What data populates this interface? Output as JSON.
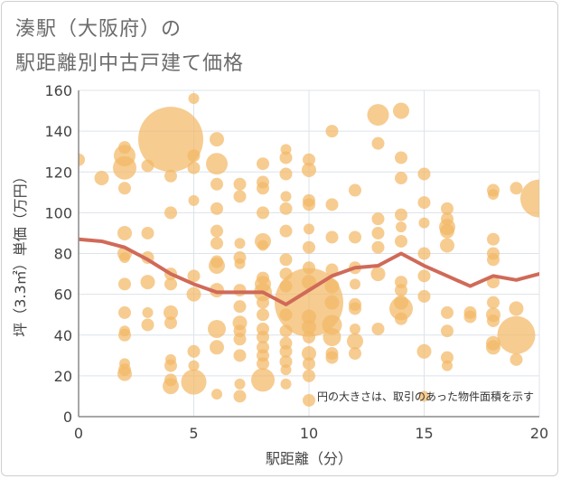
{
  "title": {
    "line1": "湊駅（大阪府）の",
    "line2": "駅距離別中古戸建て価格"
  },
  "chart_data": {
    "type": "scatter",
    "title": "湊駅（大阪府）の駅距離別中古戸建て価格",
    "xlabel": "駅距離（分）",
    "ylabel": "坪（3.3㎡）単価（万円）",
    "xlim": [
      0,
      20
    ],
    "ylim": [
      0,
      160
    ],
    "xticks": [
      0,
      5,
      10,
      15,
      20
    ],
    "yticks": [
      0,
      20,
      40,
      60,
      80,
      100,
      120,
      140,
      160
    ],
    "xtick_labels": [
      "0",
      "5",
      "10",
      "15",
      "20"
    ],
    "ytick_labels": [
      "0",
      "20",
      "40",
      "60",
      "80",
      "100",
      "120",
      "140",
      "160"
    ],
    "note": "円の大きさは、取引のあった物件面積を示す",
    "colors": {
      "bubble": "#f2b866",
      "trend": "#d06a58",
      "grid": "#dde3ea",
      "axis": "#8a8a8a"
    },
    "trend_line": {
      "x": [
        0,
        1,
        2,
        3,
        4,
        5,
        6,
        7,
        8,
        9,
        10,
        11,
        12,
        13,
        14,
        15,
        16,
        17,
        18,
        19,
        20
      ],
      "y": [
        87,
        86,
        83,
        77,
        70,
        65,
        61,
        61,
        61,
        55,
        62,
        69,
        73,
        74,
        80,
        74,
        69,
        64,
        69,
        67,
        70
      ]
    },
    "points": [
      {
        "x": 0,
        "y": 126,
        "s": 7
      },
      {
        "x": 1,
        "y": 117,
        "s": 8
      },
      {
        "x": 2,
        "y": 132,
        "s": 7
      },
      {
        "x": 2,
        "y": 128,
        "s": 12
      },
      {
        "x": 2,
        "y": 122,
        "s": 13
      },
      {
        "x": 2,
        "y": 112,
        "s": 7
      },
      {
        "x": 2,
        "y": 90,
        "s": 8
      },
      {
        "x": 2,
        "y": 80,
        "s": 8
      },
      {
        "x": 2,
        "y": 78,
        "s": 6
      },
      {
        "x": 2,
        "y": 65,
        "s": 7
      },
      {
        "x": 2,
        "y": 51,
        "s": 7
      },
      {
        "x": 2,
        "y": 42,
        "s": 6
      },
      {
        "x": 2,
        "y": 40,
        "s": 7
      },
      {
        "x": 2,
        "y": 26,
        "s": 6
      },
      {
        "x": 2,
        "y": 23,
        "s": 7
      },
      {
        "x": 2,
        "y": 21,
        "s": 8
      },
      {
        "x": 3,
        "y": 123,
        "s": 7
      },
      {
        "x": 3,
        "y": 90,
        "s": 7
      },
      {
        "x": 3,
        "y": 78,
        "s": 7
      },
      {
        "x": 3,
        "y": 66,
        "s": 8
      },
      {
        "x": 3,
        "y": 51,
        "s": 6
      },
      {
        "x": 3,
        "y": 45,
        "s": 7
      },
      {
        "x": 4,
        "y": 136,
        "s": 36
      },
      {
        "x": 4,
        "y": 118,
        "s": 7
      },
      {
        "x": 4,
        "y": 100,
        "s": 7
      },
      {
        "x": 4,
        "y": 70,
        "s": 7
      },
      {
        "x": 4,
        "y": 65,
        "s": 7
      },
      {
        "x": 4,
        "y": 51,
        "s": 8
      },
      {
        "x": 4,
        "y": 46,
        "s": 7
      },
      {
        "x": 4,
        "y": 28,
        "s": 6
      },
      {
        "x": 4,
        "y": 25,
        "s": 7
      },
      {
        "x": 4,
        "y": 18,
        "s": 7
      },
      {
        "x": 4,
        "y": 15,
        "s": 9
      },
      {
        "x": 5,
        "y": 156,
        "s": 6
      },
      {
        "x": 5,
        "y": 128,
        "s": 7
      },
      {
        "x": 5,
        "y": 122,
        "s": 7
      },
      {
        "x": 5,
        "y": 106,
        "s": 6
      },
      {
        "x": 5,
        "y": 69,
        "s": 7
      },
      {
        "x": 5,
        "y": 60,
        "s": 8
      },
      {
        "x": 5,
        "y": 32,
        "s": 7
      },
      {
        "x": 5,
        "y": 25,
        "s": 6
      },
      {
        "x": 5,
        "y": 17,
        "s": 14
      },
      {
        "x": 6,
        "y": 136,
        "s": 8
      },
      {
        "x": 6,
        "y": 124,
        "s": 12
      },
      {
        "x": 6,
        "y": 114,
        "s": 7
      },
      {
        "x": 6,
        "y": 102,
        "s": 7
      },
      {
        "x": 6,
        "y": 91,
        "s": 7
      },
      {
        "x": 6,
        "y": 85,
        "s": 7
      },
      {
        "x": 6,
        "y": 76,
        "s": 7
      },
      {
        "x": 6,
        "y": 74,
        "s": 9
      },
      {
        "x": 6,
        "y": 62,
        "s": 8
      },
      {
        "x": 6,
        "y": 43,
        "s": 10
      },
      {
        "x": 6,
        "y": 34,
        "s": 8
      },
      {
        "x": 6,
        "y": 11,
        "s": 6
      },
      {
        "x": 7,
        "y": 114,
        "s": 7
      },
      {
        "x": 7,
        "y": 108,
        "s": 7
      },
      {
        "x": 7,
        "y": 85,
        "s": 6
      },
      {
        "x": 7,
        "y": 78,
        "s": 7
      },
      {
        "x": 7,
        "y": 75,
        "s": 6
      },
      {
        "x": 7,
        "y": 62,
        "s": 7
      },
      {
        "x": 7,
        "y": 54,
        "s": 7
      },
      {
        "x": 7,
        "y": 46,
        "s": 8
      },
      {
        "x": 7,
        "y": 42,
        "s": 7
      },
      {
        "x": 7,
        "y": 38,
        "s": 7
      },
      {
        "x": 7,
        "y": 30,
        "s": 7
      },
      {
        "x": 7,
        "y": 16,
        "s": 6
      },
      {
        "x": 7,
        "y": 10,
        "s": 7
      },
      {
        "x": 8,
        "y": 124,
        "s": 7
      },
      {
        "x": 8,
        "y": 115,
        "s": 7
      },
      {
        "x": 8,
        "y": 112,
        "s": 7
      },
      {
        "x": 8,
        "y": 100,
        "s": 7
      },
      {
        "x": 8,
        "y": 86,
        "s": 9
      },
      {
        "x": 8,
        "y": 84,
        "s": 6
      },
      {
        "x": 8,
        "y": 68,
        "s": 7
      },
      {
        "x": 8,
        "y": 65,
        "s": 9
      },
      {
        "x": 8,
        "y": 61,
        "s": 10
      },
      {
        "x": 8,
        "y": 56,
        "s": 7
      },
      {
        "x": 8,
        "y": 50,
        "s": 7
      },
      {
        "x": 8,
        "y": 43,
        "s": 7
      },
      {
        "x": 8,
        "y": 39,
        "s": 7
      },
      {
        "x": 8,
        "y": 34,
        "s": 7
      },
      {
        "x": 8,
        "y": 30,
        "s": 7
      },
      {
        "x": 8,
        "y": 26,
        "s": 7
      },
      {
        "x": 8,
        "y": 18,
        "s": 13
      },
      {
        "x": 9,
        "y": 131,
        "s": 6
      },
      {
        "x": 9,
        "y": 127,
        "s": 7
      },
      {
        "x": 9,
        "y": 119,
        "s": 7
      },
      {
        "x": 9,
        "y": 108,
        "s": 6
      },
      {
        "x": 9,
        "y": 102,
        "s": 7
      },
      {
        "x": 9,
        "y": 91,
        "s": 7
      },
      {
        "x": 9,
        "y": 77,
        "s": 7
      },
      {
        "x": 9,
        "y": 70,
        "s": 7
      },
      {
        "x": 9,
        "y": 64,
        "s": 7
      },
      {
        "x": 9,
        "y": 50,
        "s": 7
      },
      {
        "x": 9,
        "y": 42,
        "s": 7
      },
      {
        "x": 9,
        "y": 36,
        "s": 7
      },
      {
        "x": 9,
        "y": 32,
        "s": 7
      },
      {
        "x": 9,
        "y": 27,
        "s": 7
      },
      {
        "x": 9,
        "y": 23,
        "s": 6
      },
      {
        "x": 9,
        "y": 16,
        "s": 6
      },
      {
        "x": 10,
        "y": 126,
        "s": 7
      },
      {
        "x": 10,
        "y": 121,
        "s": 8
      },
      {
        "x": 10,
        "y": 106,
        "s": 7
      },
      {
        "x": 10,
        "y": 104,
        "s": 7
      },
      {
        "x": 10,
        "y": 92,
        "s": 6
      },
      {
        "x": 10,
        "y": 83,
        "s": 7
      },
      {
        "x": 10,
        "y": 73,
        "s": 7
      },
      {
        "x": 10,
        "y": 66,
        "s": 8
      },
      {
        "x": 10,
        "y": 56,
        "s": 38
      },
      {
        "x": 10,
        "y": 49,
        "s": 8
      },
      {
        "x": 10,
        "y": 44,
        "s": 8
      },
      {
        "x": 10,
        "y": 39,
        "s": 7
      },
      {
        "x": 10,
        "y": 31,
        "s": 8
      },
      {
        "x": 10,
        "y": 26,
        "s": 7
      },
      {
        "x": 10,
        "y": 20,
        "s": 7
      },
      {
        "x": 10,
        "y": 8,
        "s": 7
      },
      {
        "x": 11,
        "y": 140,
        "s": 7
      },
      {
        "x": 11,
        "y": 104,
        "s": 7
      },
      {
        "x": 11,
        "y": 88,
        "s": 7
      },
      {
        "x": 11,
        "y": 72,
        "s": 7
      },
      {
        "x": 11,
        "y": 64,
        "s": 8
      },
      {
        "x": 11,
        "y": 56,
        "s": 8
      },
      {
        "x": 11,
        "y": 45,
        "s": 11
      },
      {
        "x": 11,
        "y": 39,
        "s": 10
      },
      {
        "x": 11,
        "y": 31,
        "s": 7
      },
      {
        "x": 11,
        "y": 29,
        "s": 7
      },
      {
        "x": 12,
        "y": 111,
        "s": 7
      },
      {
        "x": 12,
        "y": 88,
        "s": 7
      },
      {
        "x": 12,
        "y": 73,
        "s": 7
      },
      {
        "x": 12,
        "y": 65,
        "s": 6
      },
      {
        "x": 12,
        "y": 55,
        "s": 7
      },
      {
        "x": 12,
        "y": 53,
        "s": 7
      },
      {
        "x": 12,
        "y": 43,
        "s": 6
      },
      {
        "x": 12,
        "y": 37,
        "s": 9
      },
      {
        "x": 12,
        "y": 31,
        "s": 7
      },
      {
        "x": 13,
        "y": 148,
        "s": 12
      },
      {
        "x": 13,
        "y": 134,
        "s": 7
      },
      {
        "x": 13,
        "y": 97,
        "s": 7
      },
      {
        "x": 13,
        "y": 90,
        "s": 7
      },
      {
        "x": 13,
        "y": 83,
        "s": 7
      },
      {
        "x": 13,
        "y": 70,
        "s": 8
      },
      {
        "x": 13,
        "y": 43,
        "s": 7
      },
      {
        "x": 14,
        "y": 150,
        "s": 9
      },
      {
        "x": 14,
        "y": 127,
        "s": 7
      },
      {
        "x": 14,
        "y": 117,
        "s": 7
      },
      {
        "x": 14,
        "y": 99,
        "s": 7
      },
      {
        "x": 14,
        "y": 93,
        "s": 6
      },
      {
        "x": 14,
        "y": 86,
        "s": 7
      },
      {
        "x": 14,
        "y": 66,
        "s": 7
      },
      {
        "x": 14,
        "y": 62,
        "s": 7
      },
      {
        "x": 14,
        "y": 56,
        "s": 8
      },
      {
        "x": 14,
        "y": 53,
        "s": 13
      },
      {
        "x": 14,
        "y": 48,
        "s": 7
      },
      {
        "x": 15,
        "y": 119,
        "s": 7
      },
      {
        "x": 15,
        "y": 105,
        "s": 7
      },
      {
        "x": 15,
        "y": 95,
        "s": 6
      },
      {
        "x": 15,
        "y": 80,
        "s": 7
      },
      {
        "x": 15,
        "y": 69,
        "s": 7
      },
      {
        "x": 15,
        "y": 59,
        "s": 7
      },
      {
        "x": 15,
        "y": 32,
        "s": 8
      },
      {
        "x": 15,
        "y": 10,
        "s": 6
      },
      {
        "x": 16,
        "y": 102,
        "s": 7
      },
      {
        "x": 16,
        "y": 97,
        "s": 7
      },
      {
        "x": 16,
        "y": 93,
        "s": 9
      },
      {
        "x": 16,
        "y": 91,
        "s": 8
      },
      {
        "x": 16,
        "y": 84,
        "s": 8
      },
      {
        "x": 16,
        "y": 51,
        "s": 7
      },
      {
        "x": 16,
        "y": 42,
        "s": 7
      },
      {
        "x": 16,
        "y": 29,
        "s": 7
      },
      {
        "x": 16,
        "y": 25,
        "s": 6
      },
      {
        "x": 17,
        "y": 51,
        "s": 7
      },
      {
        "x": 17,
        "y": 49,
        "s": 7
      },
      {
        "x": 18,
        "y": 111,
        "s": 7
      },
      {
        "x": 18,
        "y": 109,
        "s": 6
      },
      {
        "x": 18,
        "y": 87,
        "s": 7
      },
      {
        "x": 18,
        "y": 80,
        "s": 7
      },
      {
        "x": 18,
        "y": 77,
        "s": 7
      },
      {
        "x": 18,
        "y": 66,
        "s": 7
      },
      {
        "x": 18,
        "y": 56,
        "s": 7
      },
      {
        "x": 18,
        "y": 50,
        "s": 8
      },
      {
        "x": 18,
        "y": 47,
        "s": 7
      },
      {
        "x": 18,
        "y": 36,
        "s": 8
      },
      {
        "x": 18,
        "y": 34,
        "s": 8
      },
      {
        "x": 19,
        "y": 112,
        "s": 7
      },
      {
        "x": 19,
        "y": 53,
        "s": 8
      },
      {
        "x": 19,
        "y": 40,
        "s": 21
      },
      {
        "x": 19,
        "y": 28,
        "s": 7
      },
      {
        "x": 20,
        "y": 107,
        "s": 21
      }
    ]
  }
}
